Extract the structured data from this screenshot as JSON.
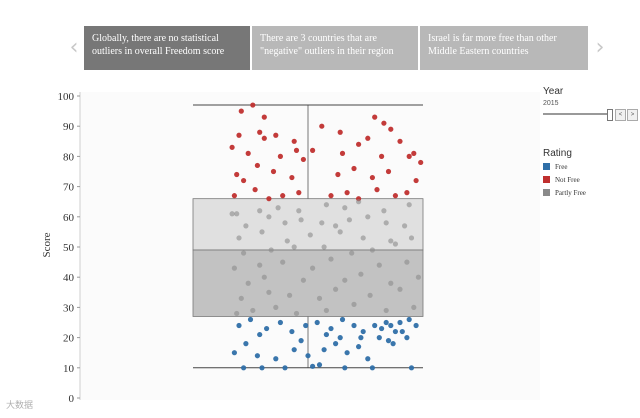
{
  "steps": [
    {
      "label": "Globally, there are no statistical outliers in overall Freedom score",
      "active": true
    },
    {
      "label": "There are 3 countries that are \"negative\" outliers in their region",
      "active": false
    },
    {
      "label": "Israel is far more free than other Middle Eastern countries",
      "active": false
    }
  ],
  "nav": {
    "prev_glyph": "‹",
    "next_glyph": "›"
  },
  "year_panel": {
    "title": "Year",
    "value": "2015",
    "prev_glyph": "<",
    "next_glyph": ">"
  },
  "rating_panel": {
    "title": "Rating"
  },
  "watermark": "大数据",
  "chart_data": {
    "type": "scatter",
    "ylabel": "Score",
    "ylim": [
      0,
      100
    ],
    "yticks": [
      0,
      10,
      20,
      30,
      40,
      50,
      60,
      70,
      80,
      90,
      100
    ],
    "box": {
      "min": 10,
      "q1": 27,
      "median": 49,
      "q3": 66,
      "max": 97
    },
    "colors": {
      "Free": "#2f6fa8",
      "Not Free": "#c0302f",
      "Partly Free": "#8a8a8a"
    },
    "series": [
      {
        "name": "Free",
        "color": "#2f6fa8",
        "points": [
          [
            0.22,
            10
          ],
          [
            0.3,
            10
          ],
          [
            0.4,
            10
          ],
          [
            0.52,
            10.5
          ],
          [
            0.55,
            11
          ],
          [
            0.66,
            10
          ],
          [
            0.78,
            10
          ],
          [
            0.95,
            10
          ],
          [
            0.18,
            15
          ],
          [
            0.23,
            18
          ],
          [
            0.28,
            14
          ],
          [
            0.36,
            13
          ],
          [
            0.44,
            16
          ],
          [
            0.47,
            19
          ],
          [
            0.5,
            14
          ],
          [
            0.57,
            16
          ],
          [
            0.62,
            18
          ],
          [
            0.67,
            15
          ],
          [
            0.72,
            17
          ],
          [
            0.76,
            13
          ],
          [
            0.81,
            20
          ],
          [
            0.85,
            19
          ],
          [
            0.88,
            22
          ],
          [
            0.93,
            20
          ],
          [
            0.2,
            24
          ],
          [
            0.25,
            26
          ],
          [
            0.32,
            23
          ],
          [
            0.38,
            25
          ],
          [
            0.43,
            22
          ],
          [
            0.49,
            24
          ],
          [
            0.54,
            25
          ],
          [
            0.6,
            23
          ],
          [
            0.65,
            26
          ],
          [
            0.7,
            24
          ],
          [
            0.74,
            22
          ],
          [
            0.79,
            24
          ],
          [
            0.82,
            23
          ],
          [
            0.84,
            25
          ],
          [
            0.86,
            24
          ],
          [
            0.9,
            25
          ],
          [
            0.94,
            26
          ],
          [
            0.97,
            24
          ],
          [
            0.29,
            21
          ],
          [
            0.58,
            21
          ],
          [
            0.64,
            20
          ],
          [
            0.73,
            20
          ],
          [
            0.87,
            18
          ],
          [
            0.91,
            22
          ]
        ]
      },
      {
        "name": "Not Free",
        "color": "#c0302f",
        "points": [
          [
            0.18,
            67
          ],
          [
            0.22,
            72
          ],
          [
            0.27,
            69
          ],
          [
            0.33,
            66
          ],
          [
            0.39,
            67
          ],
          [
            0.46,
            68
          ],
          [
            0.6,
            67
          ],
          [
            0.67,
            68
          ],
          [
            0.72,
            66
          ],
          [
            0.8,
            69
          ],
          [
            0.88,
            67
          ],
          [
            0.93,
            68
          ],
          [
            0.19,
            74
          ],
          [
            0.28,
            77
          ],
          [
            0.35,
            75
          ],
          [
            0.43,
            73
          ],
          [
            0.63,
            74
          ],
          [
            0.7,
            76
          ],
          [
            0.78,
            73
          ],
          [
            0.85,
            75
          ],
          [
            0.97,
            72
          ],
          [
            0.17,
            83
          ],
          [
            0.24,
            81
          ],
          [
            0.31,
            86
          ],
          [
            0.38,
            80
          ],
          [
            0.45,
            82
          ],
          [
            0.48,
            79
          ],
          [
            0.65,
            81
          ],
          [
            0.72,
            84
          ],
          [
            0.82,
            80
          ],
          [
            0.96,
            81
          ],
          [
            0.2,
            87
          ],
          [
            0.29,
            88
          ],
          [
            0.36,
            87
          ],
          [
            0.44,
            85
          ],
          [
            0.64,
            88
          ],
          [
            0.76,
            86
          ],
          [
            0.86,
            89
          ],
          [
            0.9,
            85
          ],
          [
            0.21,
            95
          ],
          [
            0.26,
            97
          ],
          [
            0.31,
            93
          ],
          [
            0.56,
            90
          ],
          [
            0.79,
            93
          ],
          [
            0.83,
            91
          ],
          [
            0.94,
            80
          ],
          [
            0.52,
            82
          ],
          [
            0.99,
            78
          ]
        ]
      },
      {
        "name": "Partly Free",
        "color": "#8a8a8a",
        "points": [
          [
            0.19,
            28
          ],
          [
            0.26,
            29
          ],
          [
            0.36,
            30
          ],
          [
            0.45,
            28
          ],
          [
            0.58,
            29
          ],
          [
            0.7,
            31
          ],
          [
            0.84,
            29
          ],
          [
            0.96,
            30
          ],
          [
            0.21,
            33
          ],
          [
            0.33,
            35
          ],
          [
            0.42,
            34
          ],
          [
            0.55,
            33
          ],
          [
            0.62,
            36
          ],
          [
            0.77,
            34
          ],
          [
            0.9,
            36
          ],
          [
            0.24,
            38
          ],
          [
            0.31,
            40
          ],
          [
            0.48,
            39
          ],
          [
            0.66,
            39
          ],
          [
            0.73,
            41
          ],
          [
            0.86,
            38
          ],
          [
            0.98,
            40
          ],
          [
            0.18,
            43
          ],
          [
            0.29,
            44
          ],
          [
            0.39,
            45
          ],
          [
            0.52,
            43
          ],
          [
            0.6,
            46
          ],
          [
            0.81,
            44
          ],
          [
            0.93,
            45
          ],
          [
            0.22,
            48
          ],
          [
            0.34,
            49
          ],
          [
            0.44,
            50
          ],
          [
            0.57,
            50
          ],
          [
            0.69,
            48
          ],
          [
            0.78,
            49
          ],
          [
            0.88,
            51
          ],
          [
            0.2,
            53
          ],
          [
            0.3,
            55
          ],
          [
            0.41,
            52
          ],
          [
            0.51,
            54
          ],
          [
            0.64,
            55
          ],
          [
            0.74,
            53
          ],
          [
            0.86,
            52
          ],
          [
            0.95,
            53
          ],
          [
            0.23,
            57
          ],
          [
            0.33,
            60
          ],
          [
            0.4,
            58
          ],
          [
            0.47,
            59
          ],
          [
            0.56,
            58
          ],
          [
            0.62,
            57
          ],
          [
            0.68,
            59
          ],
          [
            0.76,
            60
          ],
          [
            0.84,
            58
          ],
          [
            0.92,
            57
          ],
          [
            0.17,
            61
          ],
          [
            0.19,
            61
          ],
          [
            0.29,
            62
          ],
          [
            0.37,
            63
          ],
          [
            0.46,
            62
          ],
          [
            0.58,
            64
          ],
          [
            0.66,
            63
          ],
          [
            0.72,
            65
          ],
          [
            0.83,
            62
          ],
          [
            0.94,
            64
          ]
        ]
      }
    ]
  }
}
